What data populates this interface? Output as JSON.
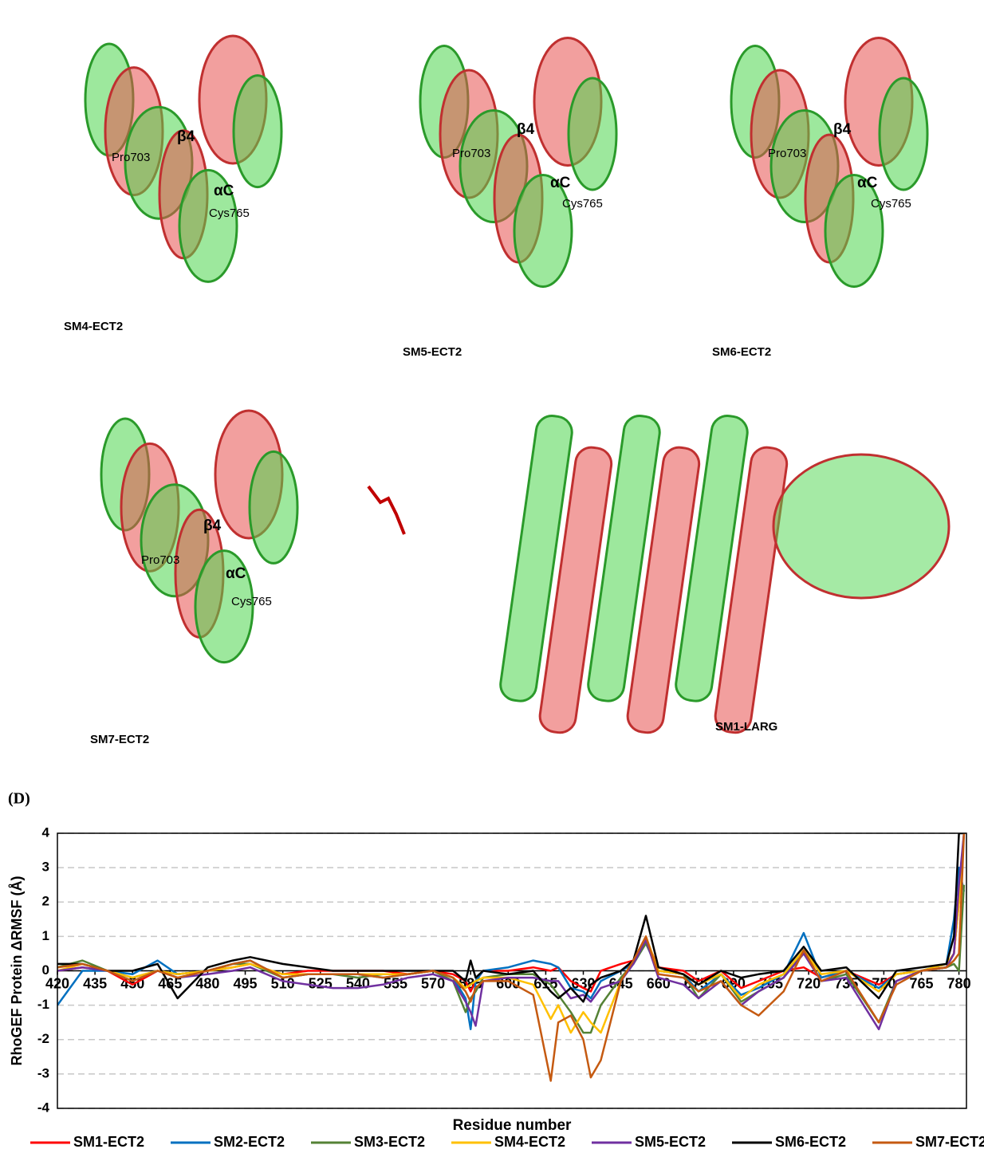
{
  "panels": [
    {
      "title": "SM4-ECT2",
      "labels": [
        "β4",
        "Pro703",
        "αC",
        "Cys765"
      ]
    },
    {
      "title": "SM5-ECT2",
      "labels": [
        "β4",
        "Pro703",
        "αC",
        "Cys765"
      ]
    },
    {
      "title": "SM6-ECT2",
      "labels": [
        "β4",
        "Pro703",
        "αC",
        "Cys765"
      ]
    },
    {
      "title": "SM7-ECT2",
      "labels": [
        "β4",
        "Pro703",
        "αC",
        "Cys765"
      ]
    },
    {
      "title": "SM1-LARG",
      "labels": []
    }
  ],
  "panel_label": "(D)",
  "chart_data": {
    "type": "line",
    "ylabel": "RhoGEF Protein ΔRMSF (Å)",
    "xlabel": "Residue number",
    "xlim": [
      420,
      783
    ],
    "xticks": [
      420,
      435,
      450,
      465,
      480,
      495,
      510,
      525,
      540,
      555,
      570,
      585,
      600,
      615,
      630,
      645,
      660,
      675,
      690,
      705,
      720,
      735,
      750,
      765,
      780
    ],
    "ylim": [
      -4,
      4
    ],
    "yticks": [
      -4,
      -3,
      -2,
      -1,
      0,
      1,
      2,
      3,
      4
    ],
    "grid": true,
    "x": [
      420,
      430,
      440,
      450,
      460,
      468,
      480,
      490,
      497,
      510,
      520,
      530,
      540,
      550,
      560,
      570,
      578,
      583,
      585,
      587,
      590,
      600,
      610,
      617,
      620,
      625,
      630,
      633,
      637,
      645,
      650,
      655,
      660,
      670,
      676,
      685,
      693,
      700,
      710,
      718,
      725,
      735,
      748,
      755,
      765,
      775,
      778,
      780,
      782
    ],
    "series": [
      {
        "name": "SM1-ECT2",
        "color": "#ff0000",
        "values": [
          0,
          0.1,
          0,
          -0.4,
          0,
          -0.1,
          0,
          0.1,
          0.2,
          -0.1,
          0,
          0,
          0,
          0,
          -0.1,
          0,
          -0.1,
          -0.3,
          -0.6,
          -0.3,
          0,
          0,
          0.1,
          0,
          0.1,
          -0.3,
          -0.5,
          -0.6,
          0,
          0.2,
          0.3,
          0.9,
          0.1,
          0,
          -0.3,
          0,
          -0.5,
          -0.3,
          0,
          0.1,
          -0.2,
          0,
          -0.4,
          -0.1,
          0,
          0.1,
          0.5,
          2,
          4
        ]
      },
      {
        "name": "SM2-ECT2",
        "color": "#0070c0",
        "values": [
          -1,
          0,
          0,
          -0.1,
          0.3,
          -0.1,
          0,
          0.2,
          0.3,
          -0.2,
          -0.1,
          -0.1,
          -0.1,
          -0.2,
          -0.1,
          0,
          -0.2,
          -0.8,
          -1.7,
          -0.3,
          0,
          0.1,
          0.3,
          0.2,
          0.1,
          -0.5,
          -0.6,
          -0.8,
          -0.3,
          0,
          0.2,
          0.8,
          0,
          -0.1,
          -0.6,
          -0.1,
          -0.7,
          -0.5,
          -0.1,
          1.1,
          -0.2,
          0,
          -0.5,
          -0.1,
          0,
          0.2,
          1.5,
          3,
          2.3
        ]
      },
      {
        "name": "SM3-ECT2",
        "color": "#548235",
        "values": [
          0.1,
          0.3,
          0,
          -0.2,
          0,
          -0.1,
          0,
          0.2,
          0.2,
          -0.2,
          -0.1,
          -0.1,
          -0.2,
          -0.1,
          -0.1,
          0,
          -0.3,
          -1.2,
          -0.8,
          -0.6,
          -0.2,
          -0.1,
          -0.1,
          -0.4,
          -0.7,
          -1.2,
          -1.8,
          -1.8,
          -1.0,
          -0.2,
          0.2,
          0.8,
          0,
          -0.1,
          -0.8,
          -0.1,
          -0.9,
          -0.6,
          -0.2,
          0.6,
          -0.3,
          -0.1,
          -1.5,
          -0.3,
          0,
          0.1,
          0.2,
          0,
          2.5
        ]
      },
      {
        "name": "SM4-ECT2",
        "color": "#ffc000",
        "values": [
          0,
          0.2,
          0,
          -0.2,
          0,
          -0.1,
          0,
          0.1,
          0.2,
          -0.1,
          -0.1,
          -0.1,
          -0.1,
          -0.1,
          -0.1,
          0,
          -0.2,
          -0.5,
          -0.4,
          -0.3,
          -0.2,
          -0.2,
          -0.4,
          -1.4,
          -1.0,
          -1.8,
          -1.2,
          -1.5,
          -1.8,
          -0.3,
          0.3,
          1.0,
          0,
          -0.1,
          -0.4,
          -0.1,
          -0.8,
          -0.4,
          -0.1,
          0.6,
          -0.1,
          0,
          -0.6,
          -0.1,
          0,
          0.2,
          0.5,
          2,
          4
        ]
      },
      {
        "name": "SM5-ECT2",
        "color": "#7030a0",
        "values": [
          0,
          0.1,
          0,
          -0.3,
          0,
          -0.2,
          -0.1,
          0,
          0.1,
          -0.3,
          -0.4,
          -0.5,
          -0.5,
          -0.4,
          -0.2,
          -0.1,
          -0.3,
          -0.9,
          -1.2,
          -1.6,
          -0.3,
          -0.2,
          -0.2,
          -0.3,
          -0.3,
          -0.8,
          -0.7,
          -0.9,
          -0.5,
          -0.3,
          0.2,
          0.9,
          -0.2,
          -0.4,
          -0.8,
          -0.3,
          -1.0,
          -0.6,
          -0.2,
          0.5,
          -0.3,
          -0.2,
          -1.7,
          -0.3,
          0,
          0.1,
          0.5,
          2.5,
          4
        ]
      },
      {
        "name": "SM6-ECT2",
        "color": "#000000",
        "values": [
          0.2,
          0.2,
          0,
          0,
          0.2,
          -0.8,
          0.1,
          0.3,
          0.4,
          0.2,
          0.1,
          0,
          0,
          0,
          0,
          0,
          0,
          -0.3,
          0.3,
          -0.2,
          0,
          -0.1,
          0,
          -0.6,
          -0.8,
          -0.5,
          -0.9,
          -0.4,
          -0.2,
          0,
          0.3,
          1.6,
          0.1,
          -0.1,
          -0.4,
          0,
          -0.2,
          -0.1,
          0,
          0.7,
          0,
          0.1,
          -0.8,
          0,
          0.1,
          0.2,
          1.0,
          4,
          4
        ]
      },
      {
        "name": "SM7-ECT2",
        "color": "#c55a11",
        "values": [
          0.1,
          0.2,
          0,
          -0.3,
          0,
          -0.2,
          0,
          0.2,
          0.3,
          -0.2,
          -0.1,
          -0.1,
          -0.1,
          -0.2,
          -0.1,
          0,
          -0.2,
          -0.6,
          -0.9,
          -0.5,
          -0.3,
          -0.3,
          -0.7,
          -3.2,
          -1.5,
          -1.3,
          -2.0,
          -3.1,
          -2.6,
          -0.3,
          0.3,
          1.0,
          -0.1,
          -0.2,
          -0.6,
          -0.3,
          -1.0,
          -1.3,
          -0.6,
          0.6,
          -0.3,
          0,
          -1.5,
          -0.4,
          0,
          0.1,
          0.3,
          0.5,
          4
        ]
      }
    ]
  }
}
